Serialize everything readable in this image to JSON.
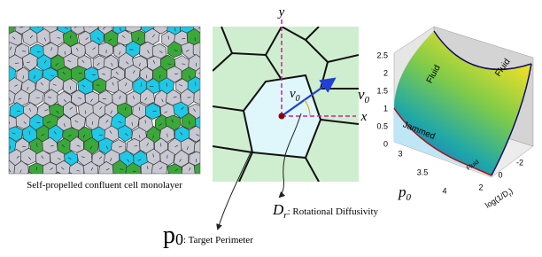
{
  "left_panel": {
    "caption": "Self-propelled confluent cell monolayer"
  },
  "center_panel": {
    "y_axis": "y",
    "x_axis": "x",
    "velocity": {
      "symbol": "v",
      "subscript": "0"
    },
    "rotational_diffusivity": {
      "symbol": "D",
      "subscript": "r",
      "description": ": Rotational Diffusivity"
    },
    "target_perimeter": {
      "symbol": "p",
      "subscript": "0",
      "description": ": Target Perimeter"
    }
  },
  "phase_plot": {
    "regions": [
      "Fluid",
      "Fluid",
      "Jammed",
      "Fluid"
    ],
    "v_axis": {
      "symbol": "v",
      "subscript": "0",
      "ticks": [
        0,
        0.5,
        1,
        1.5,
        2,
        2.5
      ]
    },
    "p_axis": {
      "symbol": "p",
      "subscript": "0",
      "ticks": [
        3,
        3.5,
        4
      ]
    },
    "d_axis": {
      "label": "log(1/D",
      "subscript": "r",
      "suffix": ")",
      "ticks": [
        2,
        0,
        -2
      ]
    }
  }
}
